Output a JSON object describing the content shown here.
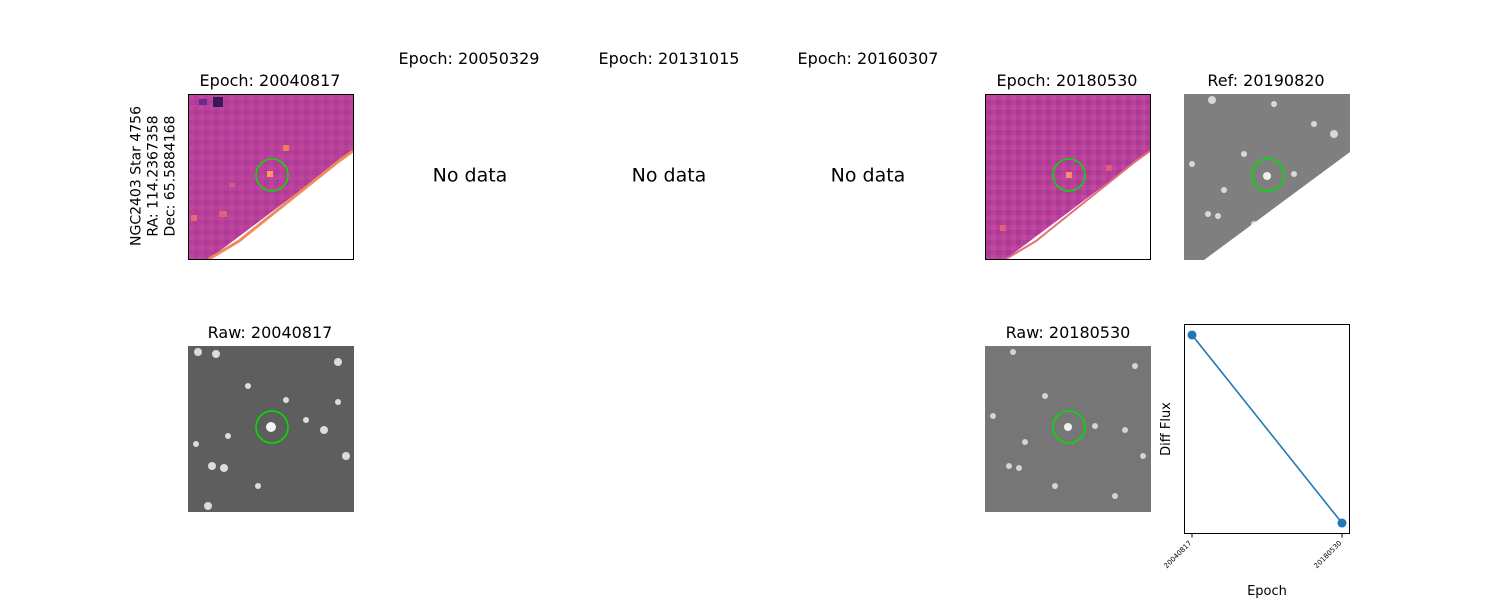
{
  "star_label": {
    "line1": "NGC2403 Star 4756",
    "line2": "RA: 114.2367358",
    "line3": "Dec: 65.5884168"
  },
  "top_row": {
    "epoch_20040817": "Epoch: 20040817",
    "epoch_20050329": "Epoch: 20050329",
    "epoch_20131015": "Epoch: 20131015",
    "epoch_20160307": "Epoch: 20160307",
    "epoch_20180530": "Epoch: 20180530",
    "ref": "Ref: 20190820",
    "no_data": "No data"
  },
  "bottom_row": {
    "raw_20040817": "Raw: 20040817",
    "raw_20180530": "Raw: 20180530"
  },
  "colors": {
    "diff_background": "#b8409a",
    "marker_circle": "#00e000",
    "series_line": "#1f77b4"
  },
  "chart_data": {
    "type": "line",
    "x": [
      "20040817",
      "20180530"
    ],
    "series": [
      {
        "values": [
          0.95,
          0.05
        ]
      }
    ],
    "xlabel": "Epoch",
    "ylabel": "Diff Flux",
    "yticks_shown": false
  }
}
